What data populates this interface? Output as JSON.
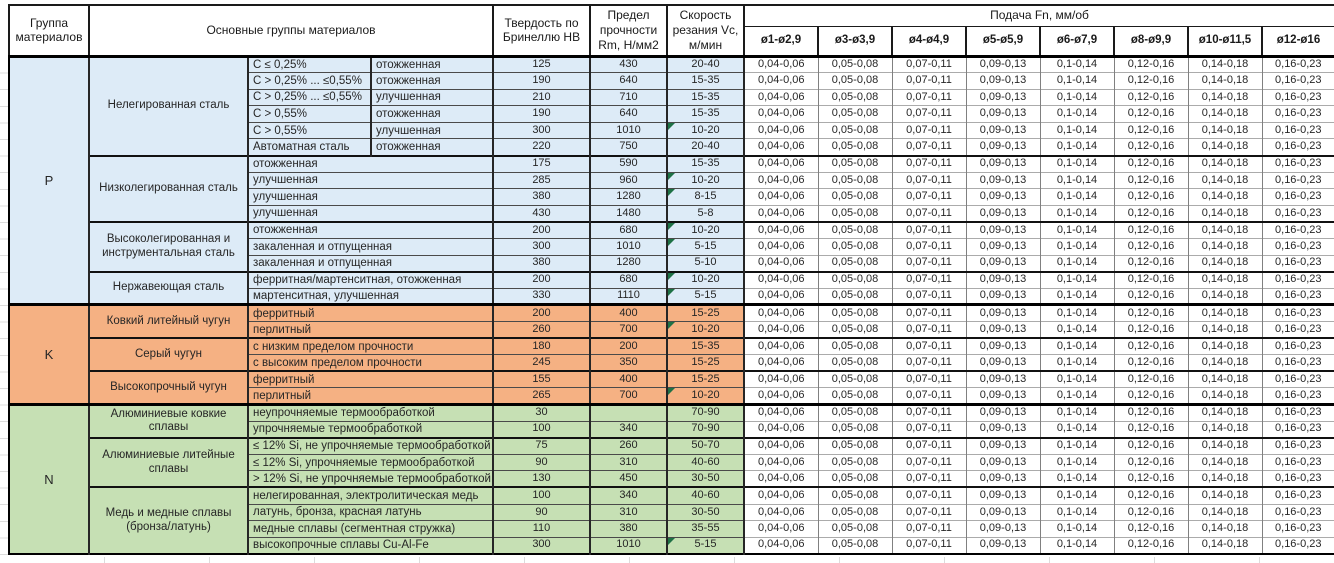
{
  "header": {
    "group_col": "Группа материалов",
    "main_col": "Основные группы материалов",
    "hb_col": "Твердость по Бринеллю НВ",
    "rm_col": "Предел прочности Rm, Н/мм2",
    "vc_col": "Скорость резания Vc, м/мин",
    "feed_col": "Подача Fn, мм/об",
    "feed_columns": [
      "ø1-ø2,9",
      "ø3-ø3,9",
      "ø4-ø4,9",
      "ø5-ø5,9",
      "ø6-ø7,9",
      "ø8-ø9,9",
      "ø10-ø11,5",
      "ø12-ø16"
    ]
  },
  "feed_values": [
    "0,04-0,06",
    "0,05-0,08",
    "0,07-0,11",
    "0,09-0,13",
    "0,1-0,14",
    "0,12-0,16",
    "0,14-0,18",
    "0,16-0,23"
  ],
  "colors": {
    "p_group": "#DDEBF7",
    "k_group": "#F5B183",
    "n_group": "#C6E0B4",
    "marker_green": "#1E7145"
  },
  "groups": [
    {
      "code": "P",
      "color": "#DDEBF7",
      "subgroups": [
        {
          "name": "Нелегированная сталь",
          "rows": [
            {
              "spec": "C ≤ 0,25%",
              "state": "отожженная",
              "hb": "125",
              "rm": "430",
              "vc": "20-40",
              "marker": false
            },
            {
              "spec": "C > 0,25% ... ≤0,55%",
              "state": "отожженная",
              "hb": "190",
              "rm": "640",
              "vc": "15-35",
              "marker": false
            },
            {
              "spec": "C > 0,25% ... ≤0,55%",
              "state": "улучшенная",
              "hb": "210",
              "rm": "710",
              "vc": "15-35",
              "marker": false
            },
            {
              "spec": "C > 0,55%",
              "state": "отожженная",
              "hb": "190",
              "rm": "640",
              "vc": "15-35",
              "marker": false
            },
            {
              "spec": "C > 0,55%",
              "state": "улучшенная",
              "hb": "300",
              "rm": "1010",
              "vc": "10-20",
              "marker": true
            },
            {
              "spec": "Автоматная сталь",
              "state": "отожженная",
              "hb": "220",
              "rm": "750",
              "vc": "20-40",
              "marker": false
            }
          ]
        },
        {
          "name": "Низколегированная сталь",
          "rows": [
            {
              "desc": "отожженная",
              "hb": "175",
              "rm": "590",
              "vc": "15-35",
              "marker": false
            },
            {
              "desc": "улучшенная",
              "hb": "285",
              "rm": "960",
              "vc": "10-20",
              "marker": true
            },
            {
              "desc": "улучшенная",
              "hb": "380",
              "rm": "1280",
              "vc": "8-15",
              "marker": true
            },
            {
              "desc": "улучшенная",
              "hb": "430",
              "rm": "1480",
              "vc": "5-8",
              "marker": false
            }
          ]
        },
        {
          "name": "Высоколегированная и инструментальная сталь",
          "rows": [
            {
              "desc": "отожженная",
              "hb": "200",
              "rm": "680",
              "vc": "10-20",
              "marker": true
            },
            {
              "desc": "закаленная и отпущенная",
              "hb": "300",
              "rm": "1010",
              "vc": "5-15",
              "marker": true
            },
            {
              "desc": "закаленная и отпущенная",
              "hb": "380",
              "rm": "1280",
              "vc": "5-10",
              "marker": false
            }
          ]
        },
        {
          "name": "Нержавеющая сталь",
          "rows": [
            {
              "desc": "ферритная/мартенситная, отожженная",
              "hb": "200",
              "rm": "680",
              "vc": "10-20",
              "marker": true
            },
            {
              "desc": "мартенситная, улучшенная",
              "hb": "330",
              "rm": "1110",
              "vc": "5-15",
              "marker": true
            }
          ]
        }
      ]
    },
    {
      "code": "K",
      "color": "#F5B183",
      "subgroups": [
        {
          "name": "Ковкий литейный чугун",
          "rows": [
            {
              "desc": "ферритный",
              "hb": "200",
              "rm": "400",
              "vc": "15-25",
              "marker": false
            },
            {
              "desc": "перлитный",
              "hb": "260",
              "rm": "700",
              "vc": "10-20",
              "marker": true
            }
          ]
        },
        {
          "name": "Серый чугун",
          "rows": [
            {
              "desc": "с низким пределом прочности",
              "hb": "180",
              "rm": "200",
              "vc": "15-35",
              "marker": false
            },
            {
              "desc": "с высоким пределом прочности",
              "hb": "245",
              "rm": "350",
              "vc": "15-25",
              "marker": false
            }
          ]
        },
        {
          "name": "Высокопрочный чугун",
          "rows": [
            {
              "desc": "ферритный",
              "hb": "155",
              "rm": "400",
              "vc": "15-25",
              "marker": false
            },
            {
              "desc": "перлитный",
              "hb": "265",
              "rm": "700",
              "vc": "10-20",
              "marker": true
            }
          ]
        }
      ]
    },
    {
      "code": "N",
      "color": "#C6E0B4",
      "subgroups": [
        {
          "name": "Алюминиевые ковкие сплавы",
          "rows": [
            {
              "desc": "неупрочняемые термообработкой",
              "hb": "30",
              "rm": "",
              "vc": "70-90",
              "marker": false
            },
            {
              "desc": "упрочняемые термообработкой",
              "hb": "100",
              "rm": "340",
              "vc": "70-90",
              "marker": false
            }
          ]
        },
        {
          "name": "Алюминиевые литейные сплавы",
          "rows": [
            {
              "desc": "≤ 12% Si, не упрочняемые термообработкой",
              "hb": "75",
              "rm": "260",
              "vc": "50-70",
              "marker": false
            },
            {
              "desc": "≤ 12% Si, упрочняемые термообработкой",
              "hb": "90",
              "rm": "310",
              "vc": "40-60",
              "marker": false
            },
            {
              "desc": "> 12% Si, не упрочняемые термообработкой",
              "hb": "130",
              "rm": "450",
              "vc": "30-50",
              "marker": false
            }
          ]
        },
        {
          "name": "Медь и медные сплавы (бронза/латунь)",
          "rows": [
            {
              "desc": "нелегированная, электролитическая медь",
              "hb": "100",
              "rm": "340",
              "vc": "40-60",
              "marker": false
            },
            {
              "desc": "латунь, бронза, красная латунь",
              "hb": "90",
              "rm": "310",
              "vc": "30-50",
              "marker": false
            },
            {
              "desc": "медные сплавы (сегментная стружка)",
              "hb": "110",
              "rm": "380",
              "vc": "35-55",
              "marker": false
            },
            {
              "desc": "высокопрочные сплавы Cu-Al-Fe",
              "hb": "300",
              "rm": "1010",
              "vc": "5-15",
              "marker": true
            }
          ]
        }
      ]
    }
  ]
}
